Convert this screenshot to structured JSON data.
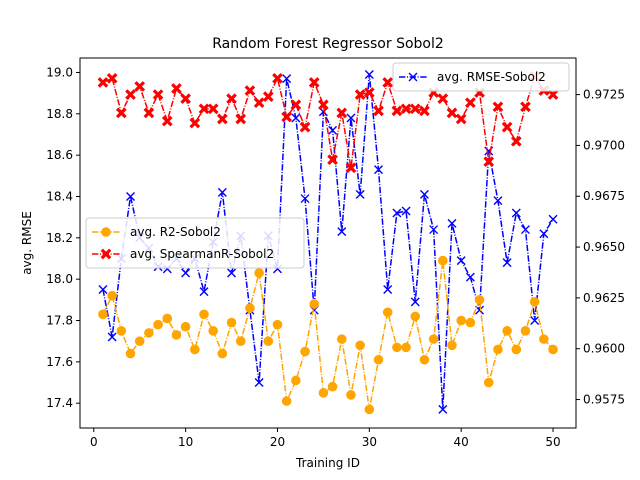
{
  "chart_data": {
    "type": "line",
    "title": "Random Forest Regressor Sobol2",
    "xlabel": "Training ID",
    "ylabel_left": "avg. RMSE",
    "ylabel_left_color": "#0000ff",
    "ylabel_right": "",
    "xlim": [
      -1.5,
      52.5
    ],
    "x_ticks": [
      0,
      10,
      20,
      30,
      40,
      50
    ],
    "ylim_left": [
      17.28,
      19.07
    ],
    "y_ticks_left": [
      17.4,
      17.6,
      17.8,
      18.0,
      18.2,
      18.4,
      18.6,
      18.8,
      19.0
    ],
    "ylim_right": [
      0.9561,
      0.9743
    ],
    "y_ticks_right": [
      0.9575,
      0.96,
      0.9625,
      0.965,
      0.9675,
      0.97,
      0.9725
    ],
    "grid": false,
    "x": [
      1,
      2,
      3,
      4,
      5,
      6,
      7,
      8,
      9,
      10,
      11,
      12,
      13,
      14,
      15,
      16,
      17,
      18,
      19,
      20,
      21,
      22,
      23,
      24,
      25,
      26,
      27,
      28,
      29,
      30,
      31,
      32,
      33,
      34,
      35,
      36,
      37,
      38,
      39,
      40,
      41,
      42,
      43,
      44,
      45,
      46,
      47,
      48,
      49,
      50
    ],
    "series": [
      {
        "name": "avg. RMSE-Sobol2",
        "axis": "left",
        "color": "#0000ff",
        "linestyle": "dashdot",
        "marker": "x",
        "legend": "top-right",
        "values": [
          17.95,
          17.72,
          18.1,
          18.4,
          18.2,
          18.15,
          18.06,
          18.05,
          18.1,
          18.03,
          18.1,
          17.94,
          18.18,
          18.42,
          18.03,
          18.21,
          17.85,
          17.5,
          18.21,
          18.05,
          18.97,
          18.78,
          18.39,
          17.85,
          18.81,
          18.72,
          18.23,
          18.78,
          18.41,
          18.99,
          18.53,
          17.95,
          18.32,
          18.33,
          17.89,
          18.41,
          18.24,
          17.37,
          18.27,
          18.09,
          18.01,
          17.85,
          18.62,
          18.38,
          18.08,
          18.32,
          18.24,
          17.8,
          18.22,
          18.29
        ]
      },
      {
        "name": "avg. R2-Sobol2",
        "axis": "left",
        "color": "#ffa500",
        "linestyle": "dashdot",
        "marker": "o",
        "legend": "center-left",
        "values": [
          17.83,
          17.92,
          17.75,
          17.64,
          17.7,
          17.74,
          17.78,
          17.81,
          17.73,
          17.77,
          17.66,
          17.83,
          17.75,
          17.64,
          17.79,
          17.7,
          17.86,
          18.03,
          17.7,
          17.78,
          17.41,
          17.51,
          17.65,
          17.88,
          17.45,
          17.48,
          17.71,
          17.44,
          17.68,
          17.37,
          17.61,
          17.84,
          17.67,
          17.67,
          17.82,
          17.61,
          17.71,
          18.09,
          17.68,
          17.8,
          17.79,
          17.9,
          17.5,
          17.66,
          17.75,
          17.66,
          17.75,
          17.89,
          17.71,
          17.66
        ]
      },
      {
        "name": "avg. SpearmanR-Sobol2",
        "axis": "right",
        "color": "#ff0000",
        "linestyle": "dashdot",
        "marker": "X",
        "legend": "center-left",
        "values": [
          0.9731,
          0.9733,
          0.9716,
          0.9725,
          0.9729,
          0.9716,
          0.9725,
          0.9712,
          0.9728,
          0.9723,
          0.9711,
          0.9718,
          0.9718,
          0.9713,
          0.9723,
          0.9713,
          0.9727,
          0.9721,
          0.9724,
          0.9733,
          0.9714,
          0.972,
          0.9709,
          0.9731,
          0.972,
          0.9693,
          0.9716,
          0.9689,
          0.9725,
          0.9726,
          0.9717,
          0.9731,
          0.9717,
          0.9718,
          0.9718,
          0.9717,
          0.9726,
          0.9723,
          0.9716,
          0.9713,
          0.9721,
          0.9726,
          0.9692,
          0.9719,
          0.9709,
          0.9702,
          0.9719,
          0.9734,
          0.9727,
          0.9725
        ]
      }
    ]
  }
}
